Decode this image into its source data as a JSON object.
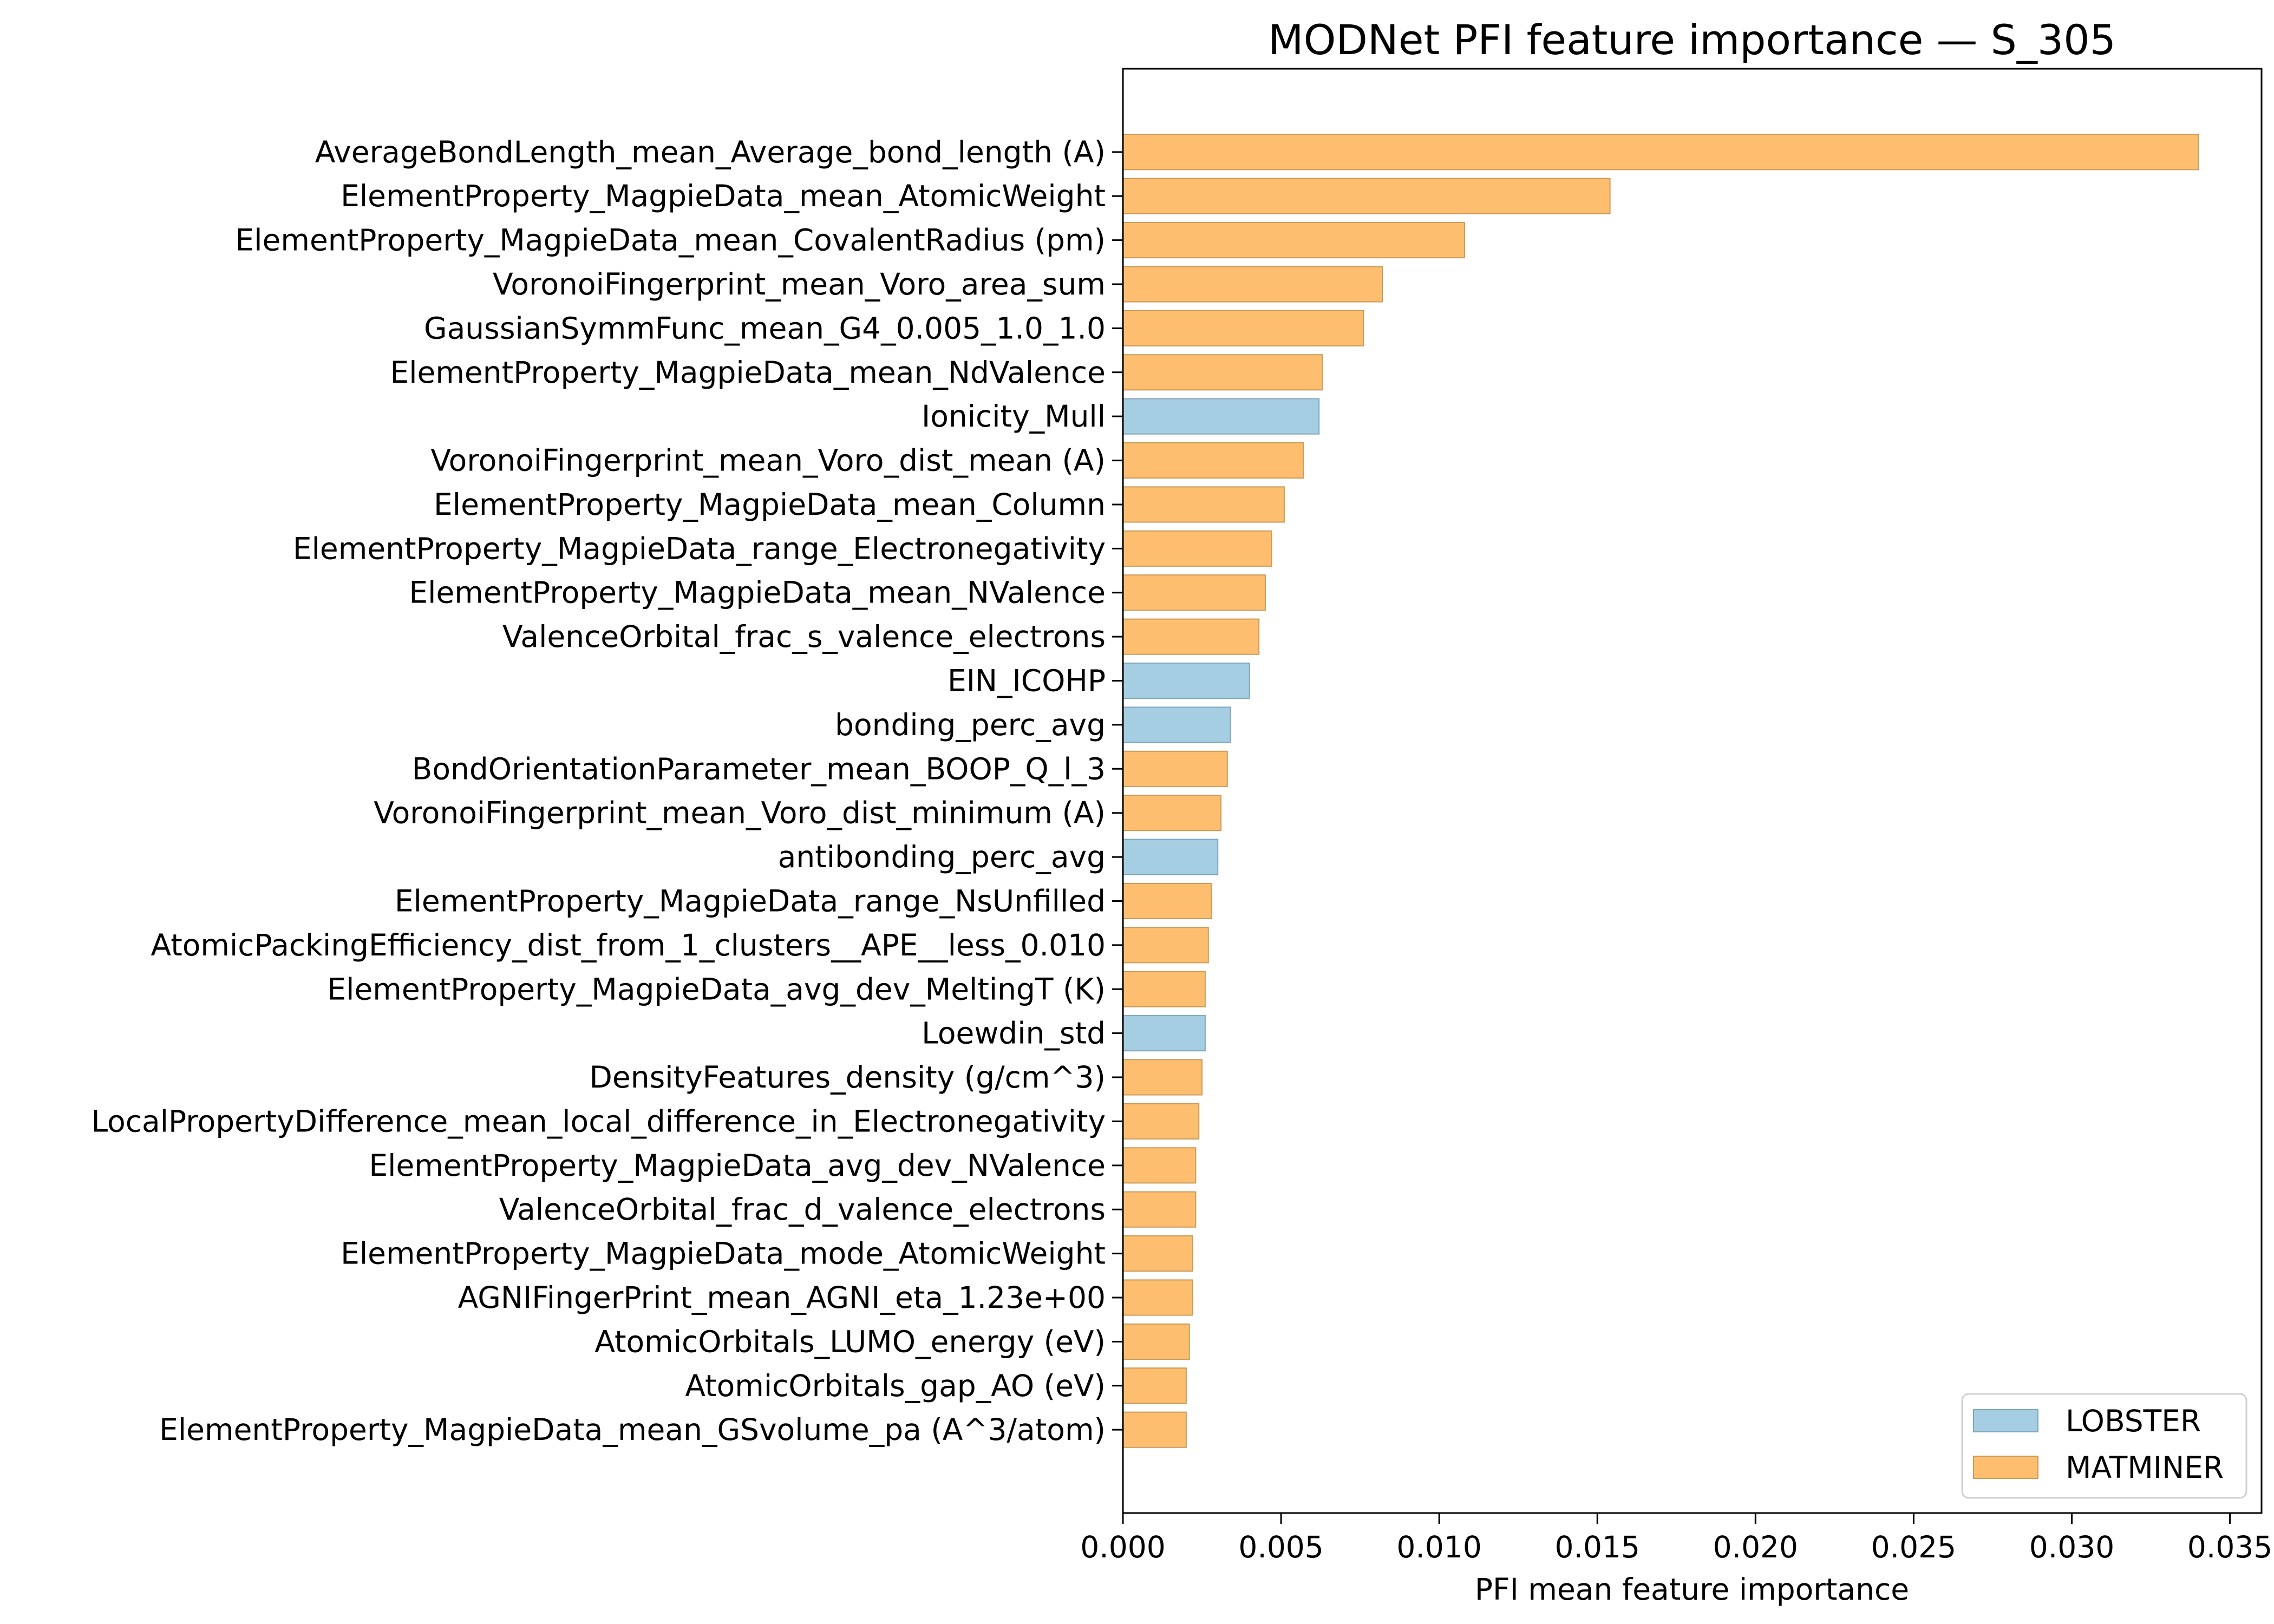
{
  "chart_data": {
    "type": "bar",
    "orientation": "horizontal",
    "title": "MODNet PFI feature importance — S_305",
    "xlabel": "PFI mean feature importance",
    "ylabel": "",
    "xlim": [
      0,
      0.036
    ],
    "xticks": [
      "0.000",
      "0.005",
      "0.010",
      "0.015",
      "0.020",
      "0.025",
      "0.030",
      "0.035"
    ],
    "grid": false,
    "legend_placement": "lower-right",
    "legend": [
      {
        "name": "LOBSTER",
        "color": "#a6cee3"
      },
      {
        "name": "MATMINER",
        "color": "#fdbf6f"
      }
    ],
    "categories": [
      "AverageBondLength_mean_Average_bond_length (A)",
      "ElementProperty_MagpieData_mean_AtomicWeight",
      "ElementProperty_MagpieData_mean_CovalentRadius (pm)",
      "VoronoiFingerprint_mean_Voro_area_sum",
      "GaussianSymmFunc_mean_G4_0.005_1.0_1.0",
      "ElementProperty_MagpieData_mean_NdValence",
      "Ionicity_Mull",
      "VoronoiFingerprint_mean_Voro_dist_mean (A)",
      "ElementProperty_MagpieData_mean_Column",
      "ElementProperty_MagpieData_range_Electronegativity",
      "ElementProperty_MagpieData_mean_NValence",
      "ValenceOrbital_frac_s_valence_electrons",
      "EIN_ICOHP",
      "bonding_perc_avg",
      "BondOrientationParameter_mean_BOOP_Q_l_3",
      "VoronoiFingerprint_mean_Voro_dist_minimum (A)",
      "antibonding_perc_avg",
      "ElementProperty_MagpieData_range_NsUnfilled",
      "AtomicPackingEfficiency_dist_from_1_clusters__APE__less_0.010",
      "ElementProperty_MagpieData_avg_dev_MeltingT (K)",
      "Loewdin_std",
      "DensityFeatures_density (g/cm^3)",
      "LocalPropertyDifference_mean_local_difference_in_Electronegativity",
      "ElementProperty_MagpieData_avg_dev_NValence",
      "ValenceOrbital_frac_d_valence_electrons",
      "ElementProperty_MagpieData_mode_AtomicWeight",
      "AGNIFingerPrint_mean_AGNI_eta_1.23e+00",
      "AtomicOrbitals_LUMO_energy (eV)",
      "AtomicOrbitals_gap_AO (eV)",
      "ElementProperty_MagpieData_mean_GSvolume_pa (A^3/atom)"
    ],
    "values": [
      0.034,
      0.0154,
      0.0108,
      0.0082,
      0.0076,
      0.0063,
      0.0062,
      0.0057,
      0.0051,
      0.0047,
      0.0045,
      0.0043,
      0.004,
      0.0034,
      0.0033,
      0.0031,
      0.003,
      0.0028,
      0.0027,
      0.0026,
      0.0026,
      0.0025,
      0.0024,
      0.0023,
      0.0023,
      0.0022,
      0.0022,
      0.0021,
      0.002,
      0.002
    ],
    "source": [
      "MATMINER",
      "MATMINER",
      "MATMINER",
      "MATMINER",
      "MATMINER",
      "MATMINER",
      "LOBSTER",
      "MATMINER",
      "MATMINER",
      "MATMINER",
      "MATMINER",
      "MATMINER",
      "LOBSTER",
      "LOBSTER",
      "MATMINER",
      "MATMINER",
      "LOBSTER",
      "MATMINER",
      "MATMINER",
      "MATMINER",
      "LOBSTER",
      "MATMINER",
      "MATMINER",
      "MATMINER",
      "MATMINER",
      "MATMINER",
      "MATMINER",
      "MATMINER",
      "MATMINER",
      "MATMINER"
    ]
  }
}
